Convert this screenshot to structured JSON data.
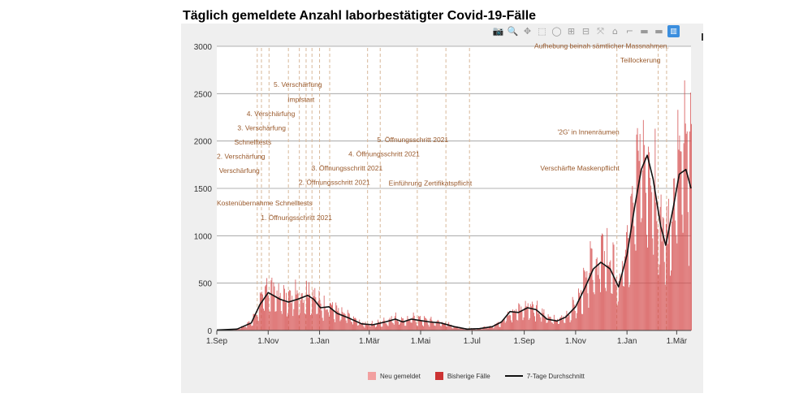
{
  "chart_data": {
    "type": "bar",
    "title": "Täglich gemeldete Anzahl laborbestätigter Covid-19-Fälle",
    "ylim": [
      0,
      3000
    ],
    "yticks": [
      0,
      500,
      1000,
      1500,
      2000,
      2500,
      3000
    ],
    "ytick_labels": [
      "0",
      "500",
      "1000",
      "1500",
      "2000",
      "2500",
      "3000"
    ],
    "x_range": [
      "2020-09-01",
      "2022-03-18"
    ],
    "xticks": [
      {
        "label": "1.Sep",
        "date": "2020-09-01"
      },
      {
        "label": "1.Nov",
        "date": "2020-11-01"
      },
      {
        "label": "1.Jan",
        "date": "2021-01-01"
      },
      {
        "label": "1.Mär",
        "date": "2021-03-01"
      },
      {
        "label": "1.Mai",
        "date": "2021-05-01"
      },
      {
        "label": "1.Jul",
        "date": "2021-07-01"
      },
      {
        "label": "1.Sep",
        "date": "2021-09-01"
      },
      {
        "label": "1.Nov",
        "date": "2021-11-01"
      },
      {
        "label": "1.Jan",
        "date": "2022-01-01"
      },
      {
        "label": "1.Mär",
        "date": "2022-03-01"
      }
    ],
    "legend": [
      {
        "name": "Neu gemeldet",
        "color": "#f2a0a0",
        "kind": "box"
      },
      {
        "name": "Bisherige Fälle",
        "color": "#cc3333",
        "kind": "box"
      },
      {
        "name": "7-Tage Durchschnitt",
        "color": "#111111",
        "kind": "line"
      }
    ],
    "colors": {
      "bars": "#d44a4a",
      "new": "#f2a0a0",
      "avg": "#111111",
      "vline": "#d8b89a",
      "annotation": "#9a5a2c"
    },
    "seven_day_average": [
      {
        "date": "2020-09-01",
        "value": 5
      },
      {
        "date": "2020-09-25",
        "value": 15
      },
      {
        "date": "2020-10-12",
        "value": 80
      },
      {
        "date": "2020-10-22",
        "value": 270
      },
      {
        "date": "2020-11-01",
        "value": 400
      },
      {
        "date": "2020-11-15",
        "value": 330
      },
      {
        "date": "2020-11-25",
        "value": 300
      },
      {
        "date": "2020-12-06",
        "value": 330
      },
      {
        "date": "2020-12-18",
        "value": 370
      },
      {
        "date": "2020-12-25",
        "value": 330
      },
      {
        "date": "2021-01-02",
        "value": 240
      },
      {
        "date": "2021-01-12",
        "value": 250
      },
      {
        "date": "2021-01-22",
        "value": 180
      },
      {
        "date": "2021-02-05",
        "value": 130
      },
      {
        "date": "2021-02-20",
        "value": 70
      },
      {
        "date": "2021-03-05",
        "value": 60
      },
      {
        "date": "2021-03-20",
        "value": 90
      },
      {
        "date": "2021-04-01",
        "value": 120
      },
      {
        "date": "2021-04-10",
        "value": 90
      },
      {
        "date": "2021-04-20",
        "value": 120
      },
      {
        "date": "2021-05-01",
        "value": 105
      },
      {
        "date": "2021-05-12",
        "value": 90
      },
      {
        "date": "2021-05-25",
        "value": 80
      },
      {
        "date": "2021-06-10",
        "value": 40
      },
      {
        "date": "2021-06-25",
        "value": 15
      },
      {
        "date": "2021-07-10",
        "value": 20
      },
      {
        "date": "2021-07-25",
        "value": 40
      },
      {
        "date": "2021-08-05",
        "value": 90
      },
      {
        "date": "2021-08-15",
        "value": 200
      },
      {
        "date": "2021-08-25",
        "value": 190
      },
      {
        "date": "2021-09-05",
        "value": 240
      },
      {
        "date": "2021-09-15",
        "value": 220
      },
      {
        "date": "2021-09-28",
        "value": 120
      },
      {
        "date": "2021-10-10",
        "value": 100
      },
      {
        "date": "2021-10-20",
        "value": 140
      },
      {
        "date": "2021-11-01",
        "value": 250
      },
      {
        "date": "2021-11-12",
        "value": 450
      },
      {
        "date": "2021-11-22",
        "value": 650
      },
      {
        "date": "2021-12-01",
        "value": 720
      },
      {
        "date": "2021-12-12",
        "value": 650
      },
      {
        "date": "2021-12-22",
        "value": 460
      },
      {
        "date": "2022-01-01",
        "value": 800
      },
      {
        "date": "2022-01-10",
        "value": 1300
      },
      {
        "date": "2022-01-18",
        "value": 1700
      },
      {
        "date": "2022-01-25",
        "value": 1850
      },
      {
        "date": "2022-02-01",
        "value": 1600
      },
      {
        "date": "2022-02-10",
        "value": 1100
      },
      {
        "date": "2022-02-16",
        "value": 900
      },
      {
        "date": "2022-02-25",
        "value": 1300
      },
      {
        "date": "2022-03-04",
        "value": 1650
      },
      {
        "date": "2022-03-12",
        "value": 1700
      },
      {
        "date": "2022-03-18",
        "value": 1500
      }
    ],
    "annotations": [
      {
        "label": "Verschärfung",
        "date": "2020-10-19",
        "level": 1665
      },
      {
        "label": "2. Verschärfung",
        "date": "2020-10-24",
        "level": 1815
      },
      {
        "label": "Schnelltests",
        "date": "2020-11-02",
        "level": 1965
      },
      {
        "label": "3. Verschärfung",
        "date": "2020-11-19",
        "level": 2115
      },
      {
        "label": "4. Verschärfung",
        "date": "2020-11-30",
        "level": 2265
      },
      {
        "label": "Impfstart",
        "date": "2020-12-23",
        "level": 2415
      },
      {
        "label": "5. Verschärfung",
        "date": "2021-01-01",
        "level": 2570
      },
      {
        "label": "Kostenübernahme Schnelltests",
        "date": "2020-12-08",
        "level": 1320
      },
      {
        "label": "1. Öffnungsschritt 2021",
        "date": "2021-01-13",
        "level": 1165
      },
      {
        "label": "2. Öffnungsschritt 2021",
        "date": "2021-02-27",
        "level": 1540
      },
      {
        "label": "3. Öffnungsschritt 2021",
        "date": "2021-03-14",
        "level": 1690
      },
      {
        "label": "4. Öffnungsschritt 2021",
        "date": "2021-04-27",
        "level": 1840
      },
      {
        "label": "5. Öffnungsschritt 2021",
        "date": "2021-05-31",
        "level": 1990
      },
      {
        "label": "Einführung Zertifikatspflicht",
        "date": "2021-06-28",
        "level": 1530
      },
      {
        "label": "Verschärfte Maskenpflicht",
        "date": "2021-12-20",
        "level": 1690
      },
      {
        "label": "'2G' in Innenräumen",
        "date": "2021-12-20",
        "level": 2070
      },
      {
        "label": "Teillockerung",
        "date": "2022-02-07",
        "level": 2830
      },
      {
        "label": "Aufhebung beinah sämtlicher Massnahmen.",
        "date": "2022-02-17",
        "level": 2980
      }
    ],
    "vlines": [
      "2020-10-19",
      "2020-10-24",
      "2020-11-02",
      "2020-11-25",
      "2020-12-08",
      "2020-12-16",
      "2020-12-23",
      "2021-01-01",
      "2021-01-13",
      "2021-02-27",
      "2021-03-14",
      "2021-04-27",
      "2021-05-31",
      "2021-06-28",
      "2021-12-20",
      "2022-02-07",
      "2022-02-17"
    ]
  },
  "modebar": {
    "icons": [
      "camera-icon",
      "zoom-icon",
      "pan-icon",
      "box-select-icon",
      "lasso-icon",
      "zoom-in-icon",
      "zoom-out-icon",
      "autoscale-icon",
      "home-icon",
      "spike-lines-icon",
      "hover-closest-icon",
      "hover-compare-icon",
      "plotly-logo-icon"
    ],
    "glyphs": [
      "📷",
      "🔍",
      "✥",
      "⬚",
      "◯",
      "⊞",
      "⊟",
      "⤧",
      "⌂",
      "⌐",
      "▬",
      "▬",
      "▥"
    ]
  }
}
